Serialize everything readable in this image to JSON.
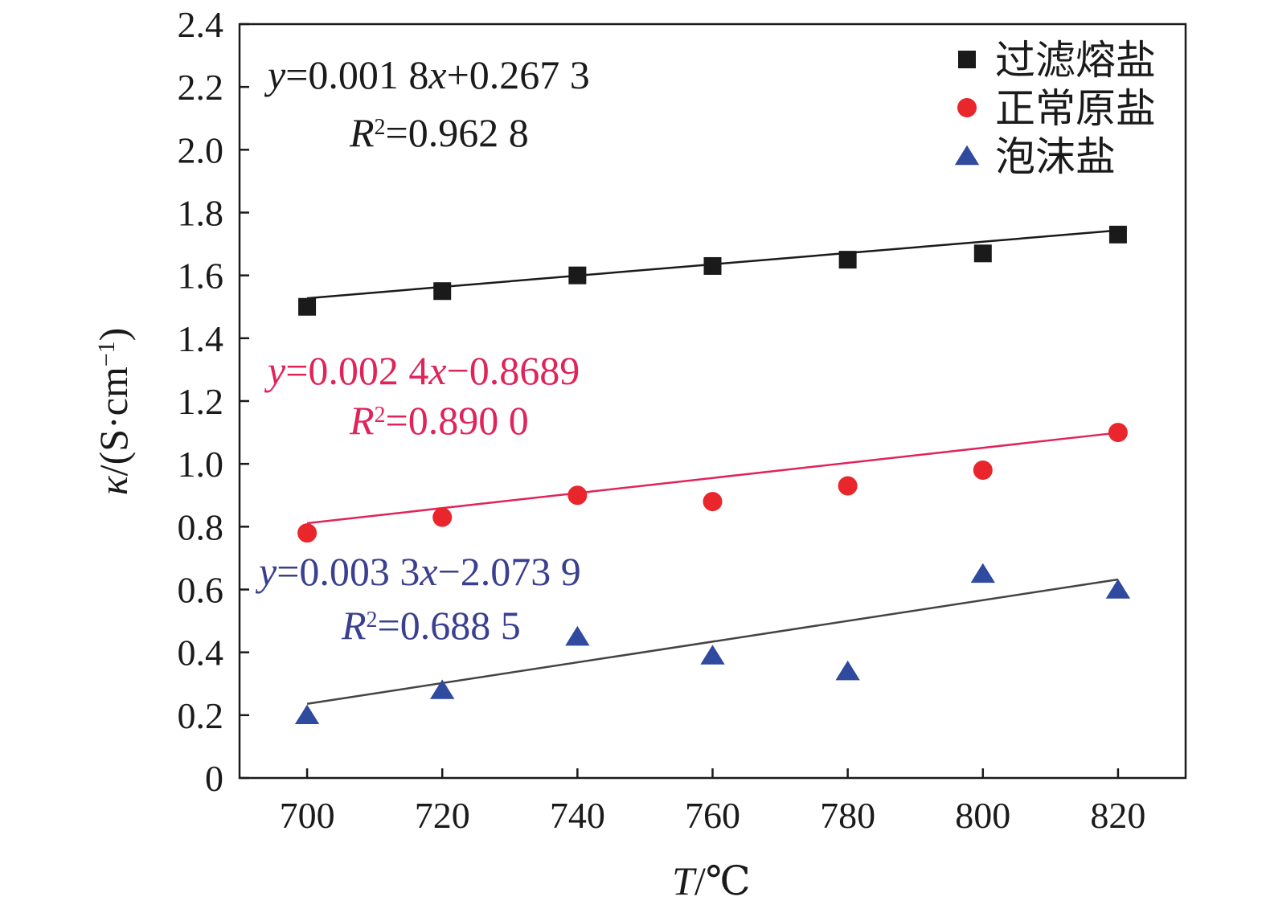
{
  "chart_data": {
    "type": "scatter",
    "title": "",
    "xlabel": {
      "var": "T",
      "unit": "/℃"
    },
    "ylabel": {
      "var": "κ",
      "unit": "/(S·cm",
      "sup": "−1",
      "close": ")"
    },
    "xlim": [
      690,
      830
    ],
    "ylim": [
      0,
      2.4
    ],
    "xticks": [
      700,
      720,
      740,
      760,
      780,
      800,
      820
    ],
    "xtick_labels": [
      "700",
      "720",
      "740",
      "760",
      "780",
      "800",
      "820"
    ],
    "yticks": [
      0,
      0.2,
      0.4,
      0.6,
      0.8,
      1.0,
      1.2,
      1.4,
      1.6,
      1.8,
      2.0,
      2.2,
      2.4
    ],
    "ytick_labels": [
      "0",
      "0.2",
      "0.4",
      "0.6",
      "0.8",
      "1.0",
      "1.2",
      "1.4",
      "1.6",
      "1.8",
      "2.0",
      "2.2",
      "2.4"
    ],
    "grid": false,
    "legend_position": "top-right",
    "series": [
      {
        "name": "过滤熔盐",
        "marker": "square",
        "color": "#1a1a1a",
        "line_color": "#1a1a1a",
        "x": [
          700,
          720,
          740,
          760,
          780,
          800,
          820
        ],
        "y": [
          1.5,
          1.55,
          1.6,
          1.63,
          1.65,
          1.67,
          1.73
        ],
        "fit": {
          "slope": 0.0018,
          "intercept": 0.2673
        },
        "equation": {
          "pre": "y",
          "mid": "=0.001 8",
          "var": "x",
          "post": "+0.267 3"
        },
        "r2": {
          "var": "R",
          "sup": "2",
          "val": "=0.962 8"
        },
        "label_color": "#1a1a1a"
      },
      {
        "name": "正常原盐",
        "marker": "circle",
        "color": "#e8262b",
        "line_color": "#e0245a",
        "x": [
          700,
          720,
          740,
          760,
          780,
          800,
          820
        ],
        "y": [
          0.78,
          0.83,
          0.9,
          0.88,
          0.93,
          0.98,
          1.1
        ],
        "fit": {
          "slope": 0.0024,
          "intercept": -0.8689
        },
        "equation": {
          "pre": "y",
          "mid": "=0.002 4",
          "var": "x",
          "post": "−0.8689"
        },
        "r2": {
          "var": "R",
          "sup": "2",
          "val": "=0.890 0"
        },
        "label_color": "#e0245a"
      },
      {
        "name": "泡沫盐",
        "marker": "triangle",
        "color": "#2f4a9e",
        "line_color": "#444444",
        "x": [
          700,
          720,
          740,
          760,
          780,
          800,
          820
        ],
        "y": [
          0.2,
          0.28,
          0.45,
          0.39,
          0.34,
          0.65,
          0.6
        ],
        "fit": {
          "slope": 0.0033,
          "intercept": -2.0739
        },
        "equation": {
          "pre": "y",
          "mid": "=0.003 3",
          "var": "x",
          "post": "−2.073 9"
        },
        "r2": {
          "var": "R",
          "sup": "2",
          "val": "=0.688 5"
        },
        "label_color": "#3a3f8f"
      }
    ]
  }
}
